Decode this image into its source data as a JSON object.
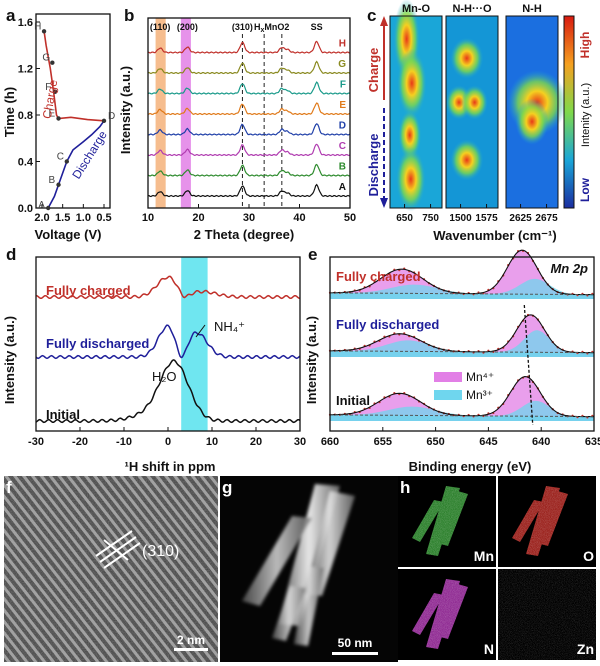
{
  "panel_letters": {
    "a": "a",
    "b": "b",
    "c": "c",
    "d": "d",
    "e": "e",
    "f": "f",
    "g": "g",
    "h": "h"
  },
  "colors": {
    "red": "#c0302a",
    "blue": "#1f1f9a",
    "black": "#111111",
    "cyan": "#5fe3ee",
    "orange": "#f4b27a",
    "magenta": "#e27fe6"
  },
  "chart_data": [
    {
      "panel": "a",
      "type": "line",
      "xlabel": "Voltage (V)",
      "ylabel": "Time (h)",
      "xlim": [
        2.0,
        0.5
      ],
      "ylim": [
        0.0,
        1.6
      ],
      "xticks": [
        "2.0",
        "1.5",
        "1.0",
        "0.5"
      ],
      "yticks": [
        "0.0",
        "0.4",
        "0.8",
        "1.2",
        "1.6"
      ],
      "series": [
        {
          "name": "Discharge",
          "color": "#1f1f9a",
          "x": [
            1.85,
            1.7,
            1.55,
            1.4,
            1.25,
            1.0,
            0.8,
            0.6,
            0.5
          ],
          "y": [
            0.0,
            0.1,
            0.25,
            0.4,
            0.5,
            0.57,
            0.63,
            0.7,
            0.75
          ]
        },
        {
          "name": "Charge",
          "color": "#c0302a",
          "x": [
            0.5,
            0.9,
            1.3,
            1.6,
            1.65,
            1.72,
            1.8,
            1.9,
            1.95
          ],
          "y": [
            0.75,
            0.76,
            0.78,
            0.77,
            0.8,
            1.0,
            1.2,
            1.4,
            1.52
          ]
        }
      ],
      "points": [
        {
          "label": "A",
          "x": 1.85,
          "y": 0.0
        },
        {
          "label": "B",
          "x": 1.6,
          "y": 0.2
        },
        {
          "label": "C",
          "x": 1.4,
          "y": 0.4
        },
        {
          "label": "D",
          "x": 0.5,
          "y": 0.75
        },
        {
          "label": "E",
          "x": 1.6,
          "y": 0.77
        },
        {
          "label": "F",
          "x": 1.68,
          "y": 1.0
        },
        {
          "label": "G",
          "x": 1.75,
          "y": 1.25
        },
        {
          "label": "H",
          "x": 1.95,
          "y": 1.52
        }
      ],
      "annotations": [
        "Charge",
        "Discharge"
      ]
    },
    {
      "panel": "b",
      "type": "line",
      "xlabel": "2 Theta (degree)",
      "ylabel": "Intensity (a.u.)",
      "xlim": [
        10,
        50
      ],
      "xticks": [
        "10",
        "20",
        "30",
        "40",
        "50"
      ],
      "peak_labels": [
        "(110)",
        "(200)",
        "(310)",
        "H_xMnO_2",
        "SS"
      ],
      "highlight_bands": [
        {
          "from": 11.5,
          "to": 13.5,
          "color": "#f4b27a"
        },
        {
          "from": 16.5,
          "to": 18.5,
          "color": "#e27fe6"
        }
      ],
      "dashed_lines_x": [
        28.7,
        33.0,
        36.5
      ],
      "peaks": [
        {
          "x": 12.4,
          "h": 0.45
        },
        {
          "x": 17.8,
          "h": 0.55
        },
        {
          "x": 28.7,
          "h": 1.0
        },
        {
          "x": 36.5,
          "h": 0.5
        },
        {
          "x": 43.4,
          "h": 1.1
        },
        {
          "x": 37.6,
          "h": 0.3
        }
      ],
      "series": [
        {
          "name": "A",
          "color": "#111111"
        },
        {
          "name": "B",
          "color": "#2e8b2e"
        },
        {
          "name": "C",
          "color": "#b03cb0"
        },
        {
          "name": "D",
          "color": "#1f3fa8"
        },
        {
          "name": "E",
          "color": "#e07a1a"
        },
        {
          "name": "F",
          "color": "#1a9a8a"
        },
        {
          "name": "G",
          "color": "#8a8a20"
        },
        {
          "name": "H",
          "color": "#c0302a"
        }
      ]
    },
    {
      "panel": "c",
      "type": "heatmap",
      "subtitles": [
        "Mn-O",
        "N-H···O",
        "N-H"
      ],
      "xlabel": "Wavenumber (cm⁻¹)",
      "xticks": [
        [
          "650",
          "750"
        ],
        [
          "1500",
          "1575"
        ],
        [
          "2625",
          "2675"
        ]
      ],
      "left_labels": [
        "Charge",
        "Discharge"
      ],
      "colorbar_labels": [
        "High",
        "Intenity (a.u.)",
        "Low"
      ]
    },
    {
      "panel": "d",
      "type": "line",
      "xlabel": "¹H shift in ppm",
      "ylabel": "Intensity (a.u.)",
      "xlim": [
        -30,
        30
      ],
      "xticks": [
        "-30",
        "-20",
        "-10",
        "0",
        "10",
        "20",
        "30"
      ],
      "highlight_band": {
        "from": 3,
        "to": 9,
        "color": "#5fe3ee"
      },
      "series": [
        {
          "name": "Fully charged",
          "color": "#c0302a",
          "offset": 2.0
        },
        {
          "name": "Fully discharged",
          "color": "#1f1f9a",
          "offset": 1.0
        },
        {
          "name": "Initial",
          "color": "#111111",
          "offset": 0.0
        }
      ],
      "annotations": [
        "NH₄⁺",
        "H₂O"
      ]
    },
    {
      "panel": "e",
      "type": "line",
      "xlabel": "Binding energy (eV)",
      "ylabel": "Intensity (a.u.)",
      "xlim": [
        660,
        635
      ],
      "xticks": [
        "660",
        "655",
        "650",
        "645",
        "640",
        "635"
      ],
      "title": "Mn 2p",
      "series": [
        {
          "name": "Fully charged",
          "color": "#c0302a"
        },
        {
          "name": "Fully discharged",
          "color": "#1f1f9a"
        },
        {
          "name": "Initial",
          "color": "#111111"
        }
      ],
      "legend": [
        {
          "name": "Mn⁴⁺",
          "color": "#e27fe6"
        },
        {
          "name": "Mn³⁺",
          "color": "#6fd6ee"
        }
      ]
    }
  ],
  "panel_f": {
    "label": "(310)",
    "scalebar": "2 nm"
  },
  "panel_g": {
    "scalebar": "50 nm"
  },
  "panel_h": {
    "elements": [
      "Mn",
      "O",
      "N",
      "Zn"
    ]
  }
}
